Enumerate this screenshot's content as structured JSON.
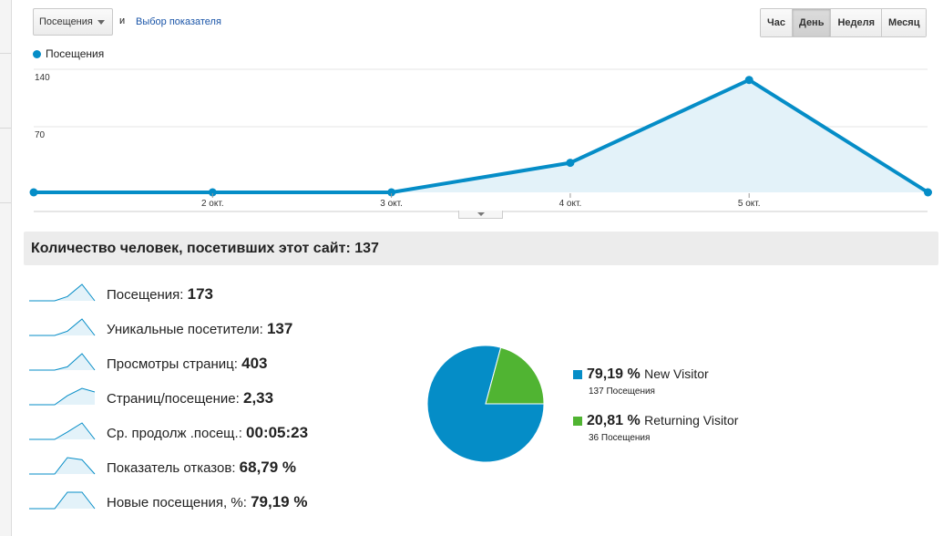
{
  "toolbar": {
    "metric_select": "Посещения",
    "and_text": "и",
    "choose_link": "Выбор показателя"
  },
  "periods": [
    {
      "label": "Час",
      "active": false
    },
    {
      "label": "День",
      "active": true
    },
    {
      "label": "Неделя",
      "active": false
    },
    {
      "label": "Месяц",
      "active": false
    }
  ],
  "legend": {
    "label": "Посещения",
    "color": "#058dc7"
  },
  "chart_data": {
    "type": "area",
    "series": [
      {
        "name": "Посещения",
        "values": [
          0,
          0,
          0,
          36,
          137,
          0
        ]
      }
    ],
    "x_ticks": [
      "2 окт.",
      "3 окт.",
      "4 окт.",
      "5 окт."
    ],
    "y_ticks": [
      "140",
      "70"
    ],
    "ylim": [
      0,
      140
    ],
    "grid": true,
    "color": "#058dc7",
    "fill": "#e3f2f9"
  },
  "summary": {
    "text": "Количество человек, посетивших этот сайт: 137"
  },
  "metrics": [
    {
      "label": "Посещения:",
      "value": "173",
      "spark": [
        0,
        0,
        0,
        0.26,
        1,
        0
      ]
    },
    {
      "label": "Уникальные посетители:",
      "value": "137",
      "spark": [
        0,
        0,
        0,
        0.26,
        1,
        0
      ]
    },
    {
      "label": "Просмотры страниц:",
      "value": "403",
      "spark": [
        0,
        0,
        0,
        0.2,
        1,
        0
      ]
    },
    {
      "label": "Страниц/посещение:",
      "value": "2,33",
      "spark": [
        0,
        0,
        0,
        0.55,
        1,
        0.78
      ]
    },
    {
      "label": "Ср. продолж .посещ.:",
      "value": "00:05:23",
      "spark": [
        0,
        0,
        0,
        0.45,
        1,
        0
      ]
    },
    {
      "label": "Показатель отказов:",
      "value": "68,79 %",
      "spark": [
        0,
        0,
        0,
        1,
        0.87,
        0
      ]
    },
    {
      "label": "Новые посещения, %:",
      "value": "79,19 %",
      "spark": [
        0,
        0,
        0,
        1,
        1,
        0
      ]
    }
  ],
  "pie": {
    "slices": [
      {
        "label": "New Visitor",
        "pct": "79,19 %",
        "value": 79.19,
        "sub": "137 Посещения",
        "color": "#058dc7"
      },
      {
        "label": "Returning Visitor",
        "pct": "20,81 %",
        "value": 20.81,
        "sub": "36 Посещения",
        "color": "#50b432"
      }
    ]
  }
}
